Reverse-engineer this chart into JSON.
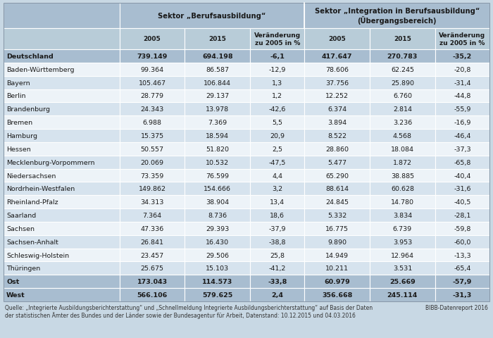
{
  "header1": "Sektor „Berufsausbildung“",
  "header2": "Sektor „Integration in Berufsausbildung“\n(Übergangsbereich)",
  "col_headers": [
    "2005",
    "2015",
    "Veränderung\nzu 2005 in %",
    "2005",
    "2015",
    "Veränderung\nzu 2005 in %"
  ],
  "rows": [
    {
      "label": "Deutschland",
      "bold": true,
      "data": [
        "739.149",
        "694.198",
        "-6,1",
        "417.647",
        "270.783",
        "-35,2"
      ]
    },
    {
      "label": "Baden-Württemberg",
      "bold": false,
      "data": [
        "99.364",
        "86.587",
        "-12,9",
        "78.606",
        "62.245",
        "-20,8"
      ]
    },
    {
      "label": "Bayern",
      "bold": false,
      "data": [
        "105.467",
        "106.844",
        "1,3",
        "37.756",
        "25.890",
        "-31,4"
      ]
    },
    {
      "label": "Berlin",
      "bold": false,
      "data": [
        "28.779",
        "29.137",
        "1,2",
        "12.252",
        "6.760",
        "-44,8"
      ]
    },
    {
      "label": "Brandenburg",
      "bold": false,
      "data": [
        "24.343",
        "13.978",
        "-42,6",
        "6.374",
        "2.814",
        "-55,9"
      ]
    },
    {
      "label": "Bremen",
      "bold": false,
      "data": [
        "6.988",
        "7.369",
        "5,5",
        "3.894",
        "3.236",
        "-16,9"
      ]
    },
    {
      "label": "Hamburg",
      "bold": false,
      "data": [
        "15.375",
        "18.594",
        "20,9",
        "8.522",
        "4.568",
        "-46,4"
      ]
    },
    {
      "label": "Hessen",
      "bold": false,
      "data": [
        "50.557",
        "51.820",
        "2,5",
        "28.860",
        "18.084",
        "-37,3"
      ]
    },
    {
      "label": "Mecklenburg-Vorpommern",
      "bold": false,
      "data": [
        "20.069",
        "10.532",
        "-47,5",
        "5.477",
        "1.872",
        "-65,8"
      ]
    },
    {
      "label": "Niedersachsen",
      "bold": false,
      "data": [
        "73.359",
        "76.599",
        "4,4",
        "65.290",
        "38.885",
        "-40,4"
      ]
    },
    {
      "label": "Nordrhein-Westfalen",
      "bold": false,
      "data": [
        "149.862",
        "154.666",
        "3,2",
        "88.614",
        "60.628",
        "-31,6"
      ]
    },
    {
      "label": "Rheinland-Pfalz",
      "bold": false,
      "data": [
        "34.313",
        "38.904",
        "13,4",
        "24.845",
        "14.780",
        "-40,5"
      ]
    },
    {
      "label": "Saarland",
      "bold": false,
      "data": [
        "7.364",
        "8.736",
        "18,6",
        "5.332",
        "3.834",
        "-28,1"
      ]
    },
    {
      "label": "Sachsen",
      "bold": false,
      "data": [
        "47.336",
        "29.393",
        "-37,9",
        "16.775",
        "6.739",
        "-59,8"
      ]
    },
    {
      "label": "Sachsen-Anhalt",
      "bold": false,
      "data": [
        "26.841",
        "16.430",
        "-38,8",
        "9.890",
        "3.953",
        "-60,0"
      ]
    },
    {
      "label": "Schleswig-Holstein",
      "bold": false,
      "data": [
        "23.457",
        "29.506",
        "25,8",
        "14.949",
        "12.964",
        "-13,3"
      ]
    },
    {
      "label": "Thüringen",
      "bold": false,
      "data": [
        "25.675",
        "15.103",
        "-41,2",
        "10.211",
        "3.531",
        "-65,4"
      ]
    },
    {
      "label": "Ost",
      "bold": true,
      "data": [
        "173.043",
        "114.573",
        "-33,8",
        "60.979",
        "25.669",
        "-57,9"
      ]
    },
    {
      "label": "West",
      "bold": true,
      "data": [
        "566.106",
        "579.625",
        "2,4",
        "356.668",
        "245.114",
        "-31,3"
      ]
    }
  ],
  "footer": "Quelle: „Integrierte Ausbildungsberichterstattung“ und „Schnellmeldung Integrierte Ausbildungsberichterstattung“ auf Basis der Daten\nder statistischen Ämter des Bundes und der Länder sowie der Bundesagentur für Arbeit, Datenstand: 10.12.2015 und 04.03.2016",
  "bibb_label": "BIBB-Datenreport 2016",
  "bg_header": "#a8bdd0",
  "bg_subheader": "#b8ccd8",
  "bg_row_even": "#d6e3ee",
  "bg_row_odd": "#edf3f8",
  "bg_bold_row": "#a8bdd0",
  "text_color": "#1a1a1a",
  "fig_bg": "#c8d8e4"
}
